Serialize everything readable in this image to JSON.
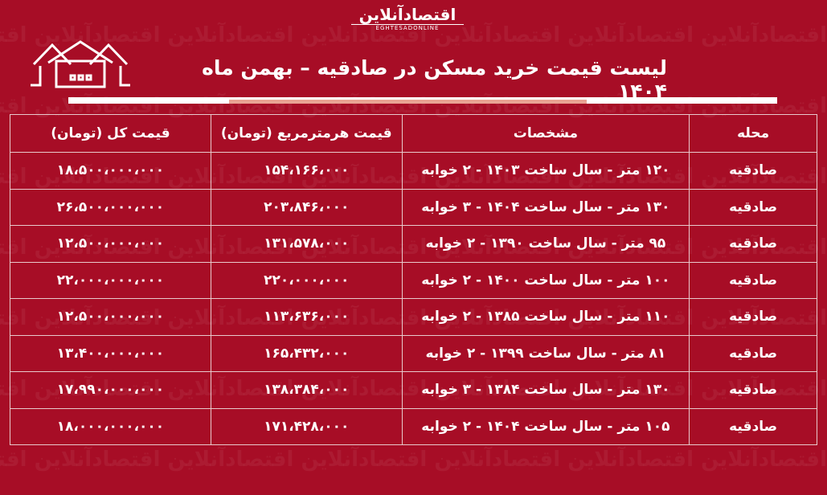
{
  "logo": {
    "fa": "اقتصادآنلاین",
    "en": "EGHTESADONLINE"
  },
  "title": "لیست قیمت خرید مسکن در صادقیه – بهمن ماه ۱۴۰۴",
  "colors": {
    "background": "#a70d26",
    "accent_bar": "#e9a393"
  },
  "icons": [
    "house-icon"
  ],
  "table": {
    "headers": [
      "محله",
      "مشخصات",
      "قیمت هرمترمربع (تومان)",
      "قیمت کل (تومان)"
    ],
    "rows": [
      [
        "صادقیه",
        "۱۲۰ متر - سال ساخت ۱۴۰۳ - ۲ خوابه",
        "۱۵۴،۱۶۶،۰۰۰",
        "۱۸،۵۰۰،۰۰۰،۰۰۰"
      ],
      [
        "صادقیه",
        "۱۳۰ متر - سال ساخت ۱۴۰۴ - ۳ خوابه",
        "۲۰۳،۸۴۶،۰۰۰",
        "۲۶،۵۰۰،۰۰۰،۰۰۰"
      ],
      [
        "صادقیه",
        "۹۵ متر - سال ساخت ۱۳۹۰ - ۲ خوابه",
        "۱۳۱،۵۷۸،۰۰۰",
        "۱۲،۵۰۰،۰۰۰،۰۰۰"
      ],
      [
        "صادقیه",
        "۱۰۰ متر - سال ساخت ۱۴۰۰ - ۲ خوابه",
        "۲۲۰،۰۰۰،۰۰۰",
        "۲۲،۰۰۰،۰۰۰،۰۰۰"
      ],
      [
        "صادقیه",
        "۱۱۰ متر - سال ساخت ۱۳۸۵ - ۲ خوابه",
        "۱۱۳،۶۳۶،۰۰۰",
        "۱۲،۵۰۰،۰۰۰،۰۰۰"
      ],
      [
        "صادقیه",
        "۸۱ متر - سال ساخت ۱۳۹۹ - ۲ خوابه",
        "۱۶۵،۴۳۲،۰۰۰",
        "۱۳،۴۰۰،۰۰۰،۰۰۰"
      ],
      [
        "صادقیه",
        "۱۳۰ متر - سال ساخت ۱۳۸۴ - ۳ خوابه",
        "۱۳۸،۳۸۴،۰۰۰",
        "۱۷،۹۹۰،۰۰۰،۰۰۰"
      ],
      [
        "صادقیه",
        "۱۰۵ متر - سال ساخت ۱۴۰۴ - ۲ خوابه",
        "۱۷۱،۴۲۸،۰۰۰",
        "۱۸،۰۰۰،۰۰۰،۰۰۰"
      ]
    ]
  }
}
